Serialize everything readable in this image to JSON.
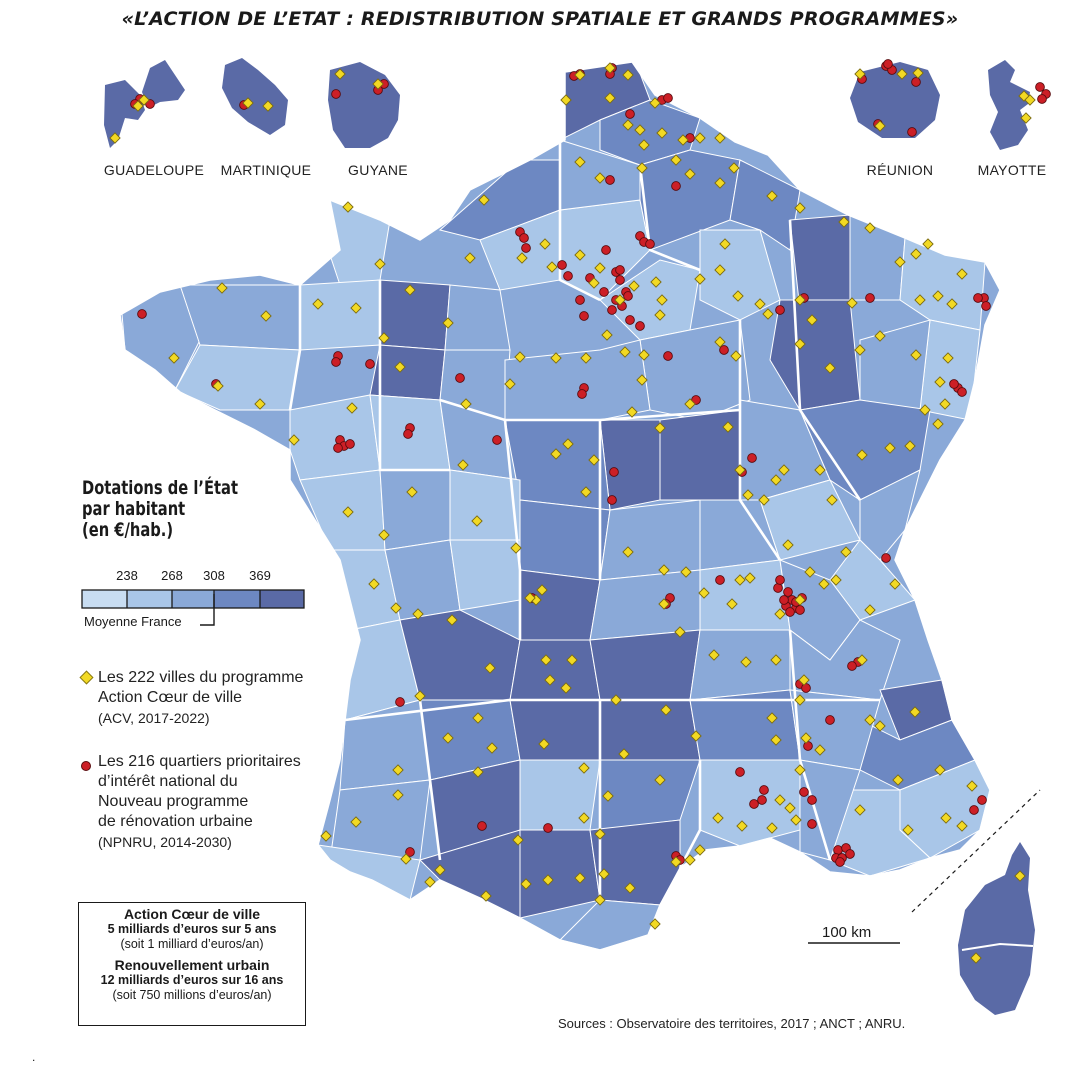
{
  "title": "«L’ACTION DE L’ETAT : REDISTRIBUTION SPATIALE ET GRANDS PROGRAMMES»",
  "overseas": [
    "GUADELOUPE",
    "MARTINIQUE",
    "GUYANE",
    "RÉUNION",
    "MAYOTTE"
  ],
  "legend": {
    "title_lines": [
      "Dotations de l’État",
      "par habitant",
      "(en €/hab.)"
    ],
    "thresholds": [
      "238",
      "268",
      "308",
      "369"
    ],
    "average_label": "Moyenne France",
    "classes": [
      "#c8ddf2",
      "#a9c6e8",
      "#8aa9d8",
      "#6d88c2",
      "#5a6aa6"
    ],
    "acv_lines": [
      "Les 222 villes du programme",
      "Action Cœur de ville",
      "(ACV, 2017-2022)"
    ],
    "npnru_lines": [
      "Les 216 quartiers prioritaires",
      "d’intérêt national du",
      "Nouveau programme",
      "de rénovation urbaine",
      "(NPNRU, 2014-2030)"
    ],
    "acv_color": "#f2d923",
    "npnru_color": "#cc1f26"
  },
  "budget": {
    "acv_title": "Action Cœur de ville",
    "acv_amount": "5 milliards d’euros sur 5 ans",
    "acv_note": "(soit 1 milliard d’euros/an)",
    "ru_title": "Renouvellement urbain",
    "ru_amount": "12 milliards d’euros sur 16 ans",
    "ru_note": "(soit 750 millions d’euros/an)"
  },
  "scale_label": "100 km",
  "sources": "Sources : Observatoire des territoires, 2017 ; ANCT ; ANRU.",
  "footnote": "."
}
